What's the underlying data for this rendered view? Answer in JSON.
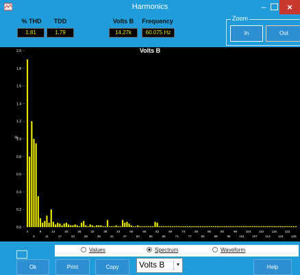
{
  "window": {
    "title": "Harmonics"
  },
  "header": {
    "thd_label": "% THD",
    "thd_value": "1.81",
    "tdd_label": "TDD",
    "tdd_value": "1.79",
    "volts_label": "Volts B",
    "volts_value": "14.27k",
    "freq_label": "Frequency",
    "freq_value": "60.075 Hz",
    "zoom_label": "Zoom",
    "zoom_in": "In",
    "zoom_out": "Out"
  },
  "chart_data": {
    "type": "bar",
    "title": "Volts B",
    "ylabel": "%",
    "ylim": [
      0,
      2.0
    ],
    "yticks": [
      "0.0",
      "0.2",
      "0.4",
      "0.6",
      "0.8",
      "1.0",
      "1.2",
      "1.4",
      "1.6",
      "1.8",
      "2.0"
    ],
    "xticks_top": [
      "2",
      "8",
      "14",
      "20",
      "26",
      "32",
      "38",
      "44",
      "50",
      "56",
      "62",
      "68",
      "74",
      "80",
      "86",
      "92",
      "98",
      "104",
      "110",
      "116",
      "122"
    ],
    "xticks_bottom": [
      "5",
      "11",
      "17",
      "23",
      "29",
      "35",
      "41",
      "47",
      "53",
      "59",
      "65",
      "71",
      "77",
      "83",
      "89",
      "95",
      "101",
      "107",
      "113",
      "119",
      "125"
    ],
    "color": "#e6e600",
    "harmonics": [
      2,
      3,
      4,
      5,
      6,
      7,
      8,
      9,
      10,
      11,
      12,
      13,
      14,
      15,
      16,
      17,
      18,
      19,
      20,
      21,
      22,
      23,
      24,
      25,
      26,
      27,
      28,
      29,
      30,
      31,
      32,
      33,
      34,
      35,
      36,
      37,
      38,
      39,
      40,
      41,
      42,
      43,
      44,
      45,
      46,
      47,
      48,
      49,
      50,
      51,
      52,
      53,
      54,
      55,
      56,
      57,
      58,
      59,
      60,
      61,
      62,
      63,
      64,
      65,
      66,
      67,
      68,
      69,
      70,
      71,
      72,
      73,
      74,
      75,
      76,
      77,
      78,
      79,
      80,
      81,
      82,
      83,
      84,
      85,
      86,
      87,
      88,
      89,
      90,
      91,
      92,
      93,
      94,
      95,
      96,
      97,
      98,
      99,
      100,
      101,
      102,
      103,
      104,
      105,
      106,
      107,
      108,
      109,
      110,
      111,
      112,
      113,
      114,
      115,
      116,
      117,
      118,
      119,
      120,
      121,
      122,
      123,
      124,
      125,
      126
    ],
    "values": [
      1.9,
      0.8,
      1.2,
      1.0,
      0.95,
      0.35,
      0.1,
      0.05,
      0.07,
      0.13,
      0.05,
      0.2,
      0.06,
      0.03,
      0.05,
      0.04,
      0.02,
      0.04,
      0.05,
      0.03,
      0.02,
      0.02,
      0.03,
      0.02,
      0.01,
      0.05,
      0.07,
      0.02,
      0.01,
      0.03,
      0.02,
      0.01,
      0.02,
      0.02,
      0.02,
      0.01,
      0.01,
      0.08,
      0.01,
      0.01,
      0.01,
      0.02,
      0.01,
      0.01,
      0.08,
      0.05,
      0.06,
      0.04,
      0.02,
      0.01,
      0.01,
      0.02,
      0.01,
      0.01,
      0.01,
      0.01,
      0.01,
      0.01,
      0.01,
      0.06,
      0.05,
      0.01,
      0.01,
      0.01,
      0.01,
      0.01,
      0.01,
      0.01,
      0.01,
      0.01,
      0.01,
      0.01,
      0.01,
      0.01,
      0.01,
      0.01,
      0.01,
      0.01,
      0.01,
      0.01,
      0.01,
      0.01,
      0.01,
      0.01,
      0.01,
      0.01,
      0.01,
      0.01,
      0.01,
      0.01,
      0.01,
      0.01,
      0.01,
      0.01,
      0.01,
      0.01,
      0.01,
      0.01,
      0.01,
      0.01,
      0.01,
      0.01,
      0.01,
      0.01,
      0.01,
      0.01,
      0.01,
      0.01,
      0.01,
      0.01,
      0.01,
      0.01,
      0.01,
      0.01,
      0.01,
      0.01,
      0.01,
      0.01,
      0.01,
      0.01,
      0.01,
      0.01,
      0.01,
      0.01,
      0.01
    ]
  },
  "footer": {
    "radio_values": "Values",
    "radio_spectrum": "Spectrum",
    "radio_waveform": "Waveform",
    "selected_view": "Spectrum",
    "ok": "Ok",
    "print": "Print",
    "copy": "Copy",
    "channel": "Volts B",
    "help": "Help"
  }
}
